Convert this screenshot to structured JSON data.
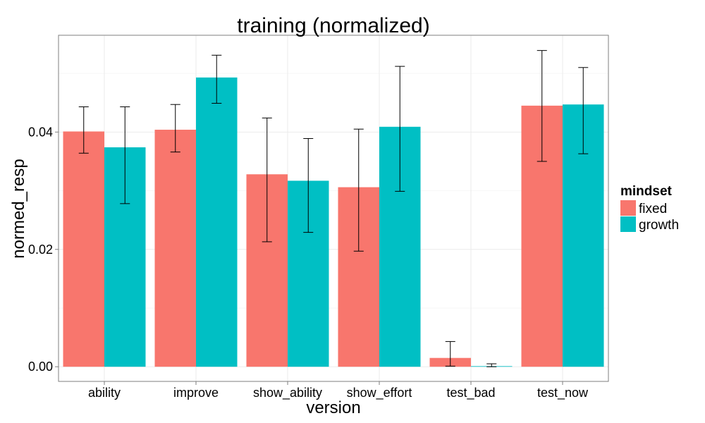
{
  "chart_data": {
    "type": "bar",
    "title": "training (normalized)",
    "xlabel": "version",
    "ylabel": "normed_resp",
    "categories": [
      "ability",
      "improve",
      "show_ability",
      "show_effort",
      "test_bad",
      "test_now"
    ],
    "ylim": [
      -0.0025,
      0.0565
    ],
    "yticks": [
      0.0,
      0.02,
      0.04
    ],
    "ytick_labels": [
      "0.00",
      "0.02",
      "0.04"
    ],
    "grid": true,
    "legend": {
      "title": "mindset",
      "position": "right"
    },
    "series": [
      {
        "name": "fixed",
        "color": "#F8766D",
        "values": [
          0.0401,
          0.0404,
          0.0328,
          0.0306,
          0.0015,
          0.0445
        ],
        "err_low": [
          0.0364,
          0.0366,
          0.0213,
          0.0197,
          0.0001,
          0.035
        ],
        "err_high": [
          0.0443,
          0.0447,
          0.0424,
          0.0405,
          0.0043,
          0.0539
        ]
      },
      {
        "name": "growth",
        "color": "#00BFC4",
        "values": [
          0.0374,
          0.0493,
          0.0317,
          0.0409,
          0.0001,
          0.0447
        ],
        "err_low": [
          0.0278,
          0.0449,
          0.0229,
          0.0299,
          0.0,
          0.0363
        ],
        "err_high": [
          0.0443,
          0.0531,
          0.0389,
          0.0512,
          0.0005,
          0.051
        ]
      }
    ]
  }
}
